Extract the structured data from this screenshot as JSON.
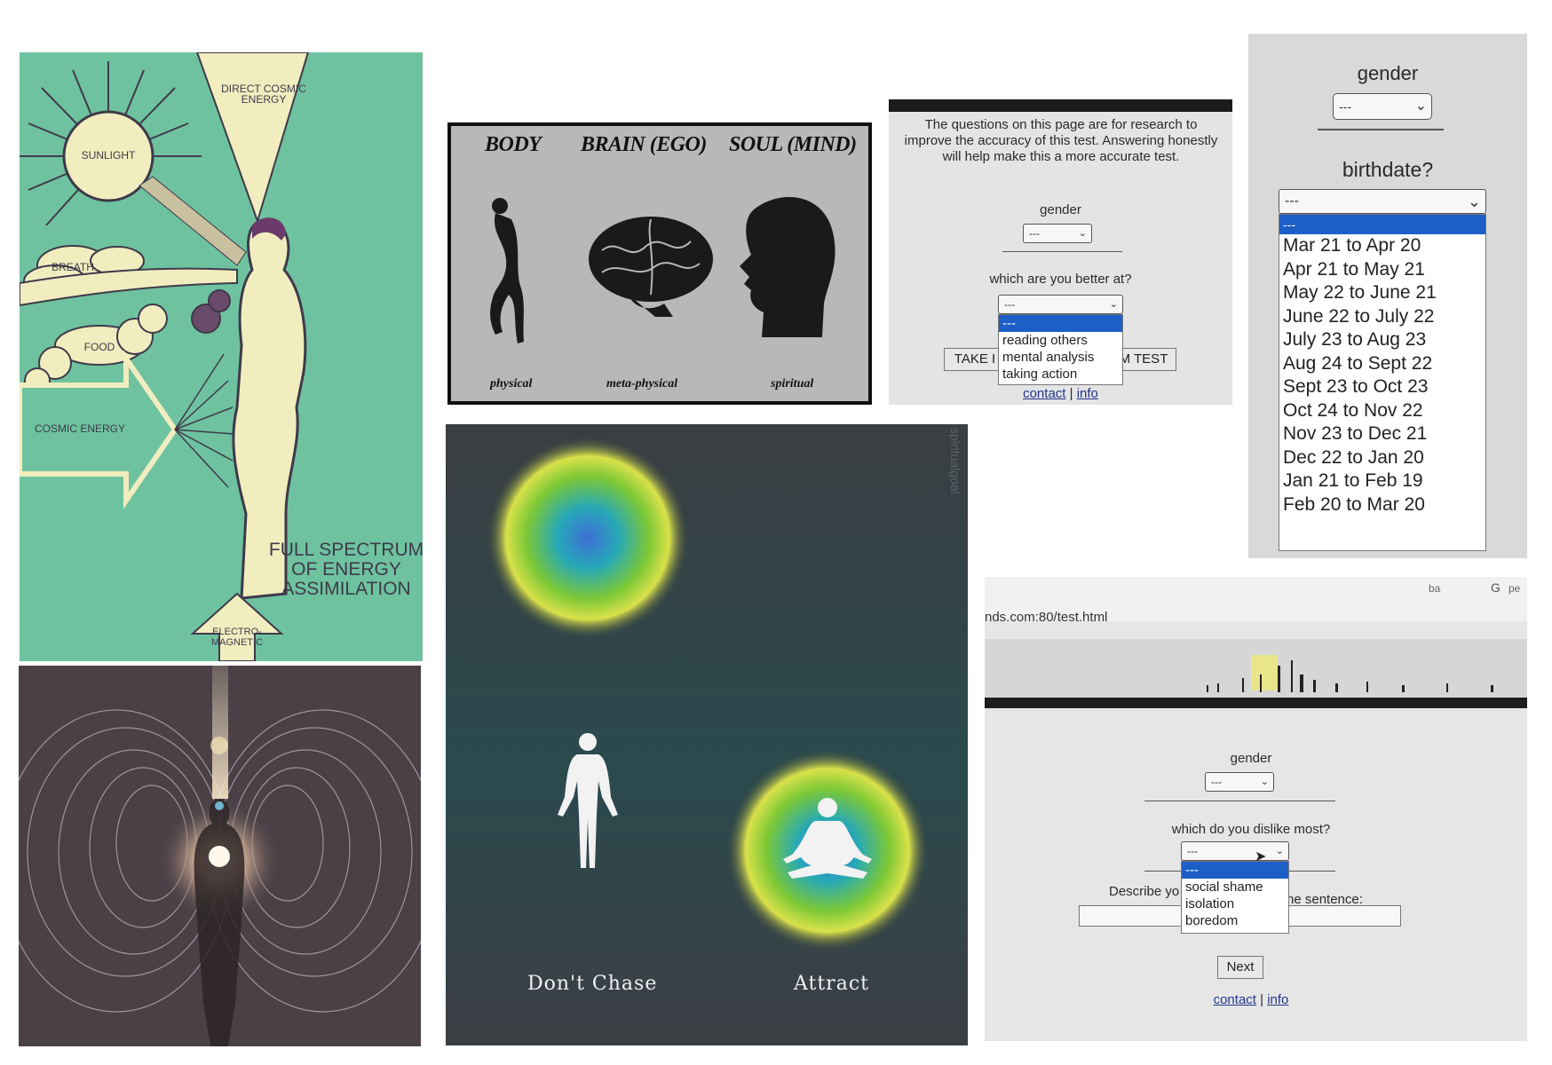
{
  "energy_poster": {
    "labels": {
      "direct_cosmic": "DIRECT COSMIC ENERGY",
      "sunlight": "SUNLIGHT",
      "breath": "BREATH",
      "food": "FOOD",
      "cosmic_energy": "COSMIC ENERGY",
      "electro": "ELECTRO- MAGNETIC"
    },
    "title_lines": [
      "FULL SPECTRUM",
      "OF ENERGY",
      "ASSIMILATION"
    ],
    "colors": {
      "background": "#6fc2a0",
      "figure": "#f3eec0",
      "ink": "#3e3a4a"
    }
  },
  "body_brain_soul": {
    "headings": [
      "BODY",
      "BRAIN (EGO)",
      "SOUL (MIND)"
    ],
    "footers": [
      "physical",
      "meta-physical",
      "spiritual"
    ]
  },
  "research_form": {
    "intro": "The questions on this page are for research to improve the accuracy of this test. Answering honestly will help make this a more accurate test.",
    "gender_label": "gender",
    "gender_value": "---",
    "question": "which are you better at?",
    "select_value": "---",
    "options": [
      "---",
      "reading others",
      "mental analysis",
      "taking action"
    ],
    "button_left": "TAKE I",
    "button_right": "M TEST",
    "links": {
      "contact": "contact",
      "sep": "|",
      "info": "info"
    }
  },
  "birthdate_form": {
    "gender_label": "gender",
    "gender_value": "---",
    "birthdate_label": "birthdate?",
    "select_value": "---",
    "options": [
      "---",
      "Mar 21 to Apr 20",
      "Apr 21 to May 21",
      "May 22 to June 21",
      "June 22 to July 22",
      "July 23 to Aug 23",
      "Aug 24 to Sept 22",
      "Sept 23 to Oct 23",
      "Oct 24 to Nov 22",
      "Nov 23 to Dec 21",
      "Dec 22 to Jan 20",
      "Jan 21 to Feb 19",
      "Feb 20 to Mar 20"
    ]
  },
  "chase_poster": {
    "left_label": "Don't Chase",
    "right_label": "Attract",
    "watermark": "spiritualgoal"
  },
  "dislike_form": {
    "url": "nds.com:80/test.html",
    "browser_bits": [
      "ba",
      "G",
      "pe"
    ],
    "gender_label": "gender",
    "gender_value": "---",
    "question": "which do you dislike most?",
    "select_value": "---",
    "options": [
      "---",
      "social shame",
      "isolation",
      "boredom"
    ],
    "describe_left": "Describe yo",
    "describe_right": "he sentence:",
    "next_button": "Next",
    "links": {
      "contact": "contact",
      "sep": "|",
      "info": "info"
    }
  }
}
